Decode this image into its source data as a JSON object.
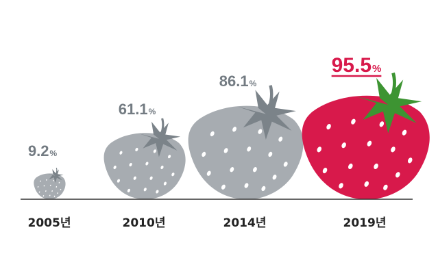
{
  "chart_data": {
    "type": "bar",
    "categories": [
      "2005년",
      "2010년",
      "2014년",
      "2019년"
    ],
    "values": [
      9.2,
      61.1,
      86.1,
      95.5
    ],
    "value_labels": [
      {
        "number": "9.2",
        "unit": "%"
      },
      {
        "number": "61.1",
        "unit": "%"
      },
      {
        "number": "86.1",
        "unit": "%"
      },
      {
        "number": "95.5",
        "unit": "%"
      }
    ],
    "marker": "strawberry-icon",
    "ylim": [
      0,
      100
    ],
    "grid": false,
    "legend": "none",
    "highlight_index": 3
  },
  "colors": {
    "muted_fruit": "#a7acb1",
    "muted_leaf": "#7b8389",
    "muted_text": "#737b82",
    "highlight_fruit": "#d8194b",
    "highlight_leaf": "#3d9432",
    "highlight_text": "#d8194b",
    "seed": "#ffffff",
    "baseline": "#333333",
    "year_text": "#222222"
  }
}
